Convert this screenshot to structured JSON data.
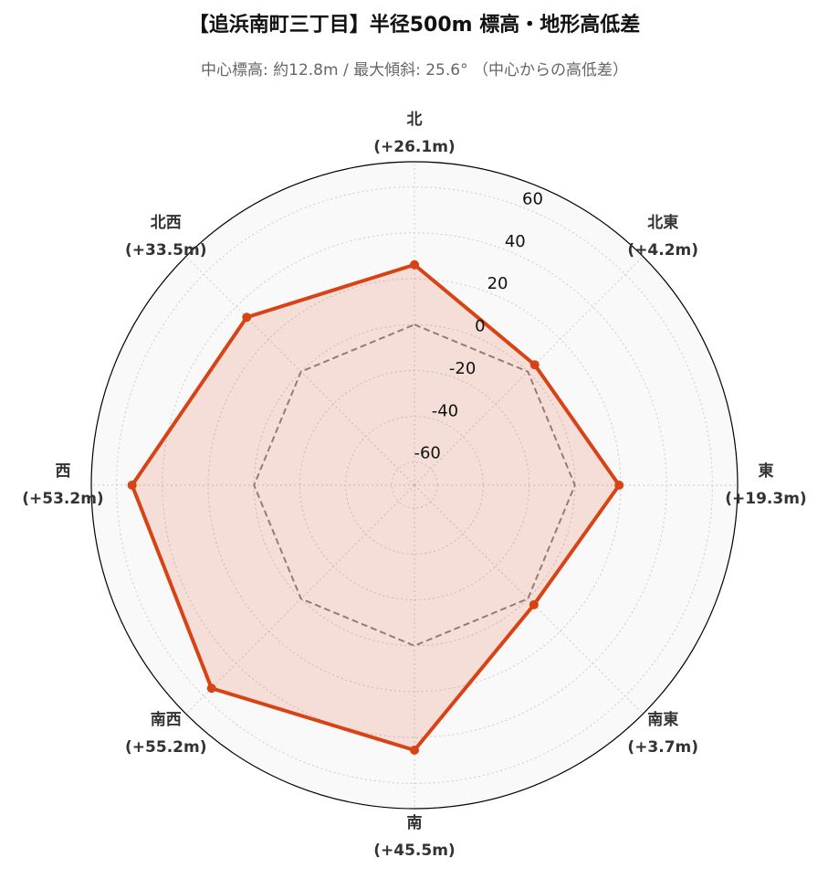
{
  "chart_data": {
    "type": "radar",
    "title": "【追浜南町三丁目】半径500m 標高・地形高低差",
    "subtitle": "中心標高: 約12.8m / 最大傾斜: 25.6° （中心からの高低差）",
    "categories": [
      "北",
      "北東",
      "東",
      "南東",
      "南",
      "南西",
      "西",
      "北西"
    ],
    "values": [
      26.1,
      4.2,
      19.3,
      3.7,
      45.5,
      55.2,
      53.2,
      33.5
    ],
    "value_labels": [
      "(+26.1m)",
      "(+4.2m)",
      "(+19.3m)",
      "(+3.7m)",
      "(+45.5m)",
      "(+55.2m)",
      "(+53.2m)",
      "(+33.5m)"
    ],
    "color": "#d84315",
    "reference": {
      "values": [
        0,
        0,
        0,
        0,
        0,
        0,
        0,
        0
      ],
      "color": "#888888",
      "style": "dashed"
    },
    "ylim": [
      -70,
      71
    ],
    "yticks": [
      -60,
      -40,
      -20,
      0,
      20,
      40,
      60
    ],
    "grid": true
  }
}
